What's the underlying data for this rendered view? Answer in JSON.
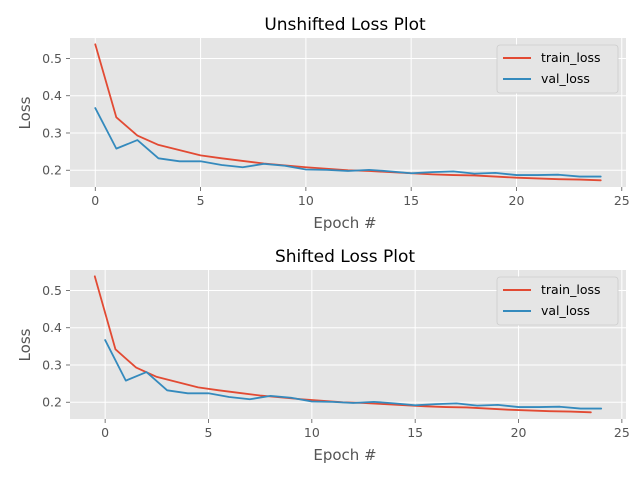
{
  "colors": {
    "train": "#E24A33",
    "val": "#348ABD",
    "panel_bg": "#E5E5E5",
    "grid": "#FFFFFF",
    "tick_text": "#555555"
  },
  "chart_data": [
    {
      "type": "line",
      "title": "Unshifted Loss Plot",
      "xlabel": "Epoch #",
      "ylabel": "Loss",
      "xlim": [
        -1.2,
        25.2
      ],
      "ylim": [
        0.155,
        0.555
      ],
      "xticks": [
        0,
        5,
        10,
        15,
        20,
        25
      ],
      "xtick_labels": [
        "0",
        "5",
        "10",
        "15",
        "20",
        "25"
      ],
      "yticks": [
        0.2,
        0.3,
        0.4,
        0.5
      ],
      "ytick_labels": [
        "0.2",
        "0.3",
        "0.4",
        "0.5"
      ],
      "grid": true,
      "legend_position": "top-right",
      "series": [
        {
          "name": "train_loss",
          "x": [
            0,
            1,
            2,
            3,
            4,
            5,
            6,
            7,
            8,
            9,
            10,
            11,
            12,
            13,
            14,
            15,
            16,
            17,
            18,
            19,
            20,
            21,
            22,
            23,
            24
          ],
          "values": [
            0.538,
            0.342,
            0.293,
            0.268,
            0.254,
            0.24,
            0.232,
            0.225,
            0.218,
            0.213,
            0.208,
            0.204,
            0.2,
            0.198,
            0.195,
            0.192,
            0.189,
            0.187,
            0.186,
            0.183,
            0.18,
            0.178,
            0.176,
            0.175,
            0.173
          ]
        },
        {
          "name": "val_loss",
          "x": [
            0,
            1,
            2,
            3,
            4,
            5,
            6,
            7,
            8,
            9,
            10,
            11,
            12,
            13,
            14,
            15,
            16,
            17,
            18,
            19,
            20,
            21,
            22,
            23,
            24
          ],
          "values": [
            0.367,
            0.258,
            0.281,
            0.232,
            0.224,
            0.224,
            0.214,
            0.208,
            0.217,
            0.212,
            0.202,
            0.201,
            0.198,
            0.201,
            0.197,
            0.192,
            0.195,
            0.197,
            0.191,
            0.193,
            0.187,
            0.187,
            0.188,
            0.183,
            0.183
          ]
        }
      ]
    },
    {
      "type": "line",
      "title": "Shifted Loss Plot",
      "xlabel": "Epoch #",
      "ylabel": "Loss",
      "xlim": [
        -1.7,
        25.2
      ],
      "ylim": [
        0.155,
        0.555
      ],
      "xticks": [
        0,
        5,
        10,
        15,
        20,
        25
      ],
      "xtick_labels": [
        "0",
        "5",
        "10",
        "15",
        "20",
        "25"
      ],
      "yticks": [
        0.2,
        0.3,
        0.4,
        0.5
      ],
      "ytick_labels": [
        "0.2",
        "0.3",
        "0.4",
        "0.5"
      ],
      "grid": true,
      "legend_position": "top-right",
      "series": [
        {
          "name": "train_loss",
          "x": [
            -0.5,
            0.5,
            1.5,
            2.5,
            3.5,
            4.5,
            5.5,
            6.5,
            7.5,
            8.5,
            9.5,
            10.5,
            11.5,
            12.5,
            13.5,
            14.5,
            15.5,
            16.5,
            17.5,
            18.5,
            19.5,
            20.5,
            21.5,
            22.5,
            23.5
          ],
          "values": [
            0.538,
            0.342,
            0.293,
            0.268,
            0.254,
            0.24,
            0.232,
            0.225,
            0.218,
            0.213,
            0.208,
            0.204,
            0.2,
            0.198,
            0.195,
            0.192,
            0.189,
            0.187,
            0.186,
            0.183,
            0.18,
            0.178,
            0.176,
            0.175,
            0.173
          ]
        },
        {
          "name": "val_loss",
          "x": [
            0,
            1,
            2,
            3,
            4,
            5,
            6,
            7,
            8,
            9,
            10,
            11,
            12,
            13,
            14,
            15,
            16,
            17,
            18,
            19,
            20,
            21,
            22,
            23,
            24
          ],
          "values": [
            0.367,
            0.258,
            0.281,
            0.232,
            0.224,
            0.224,
            0.214,
            0.208,
            0.217,
            0.212,
            0.202,
            0.201,
            0.198,
            0.201,
            0.197,
            0.192,
            0.195,
            0.197,
            0.191,
            0.193,
            0.187,
            0.187,
            0.188,
            0.183,
            0.183
          ]
        }
      ]
    }
  ]
}
